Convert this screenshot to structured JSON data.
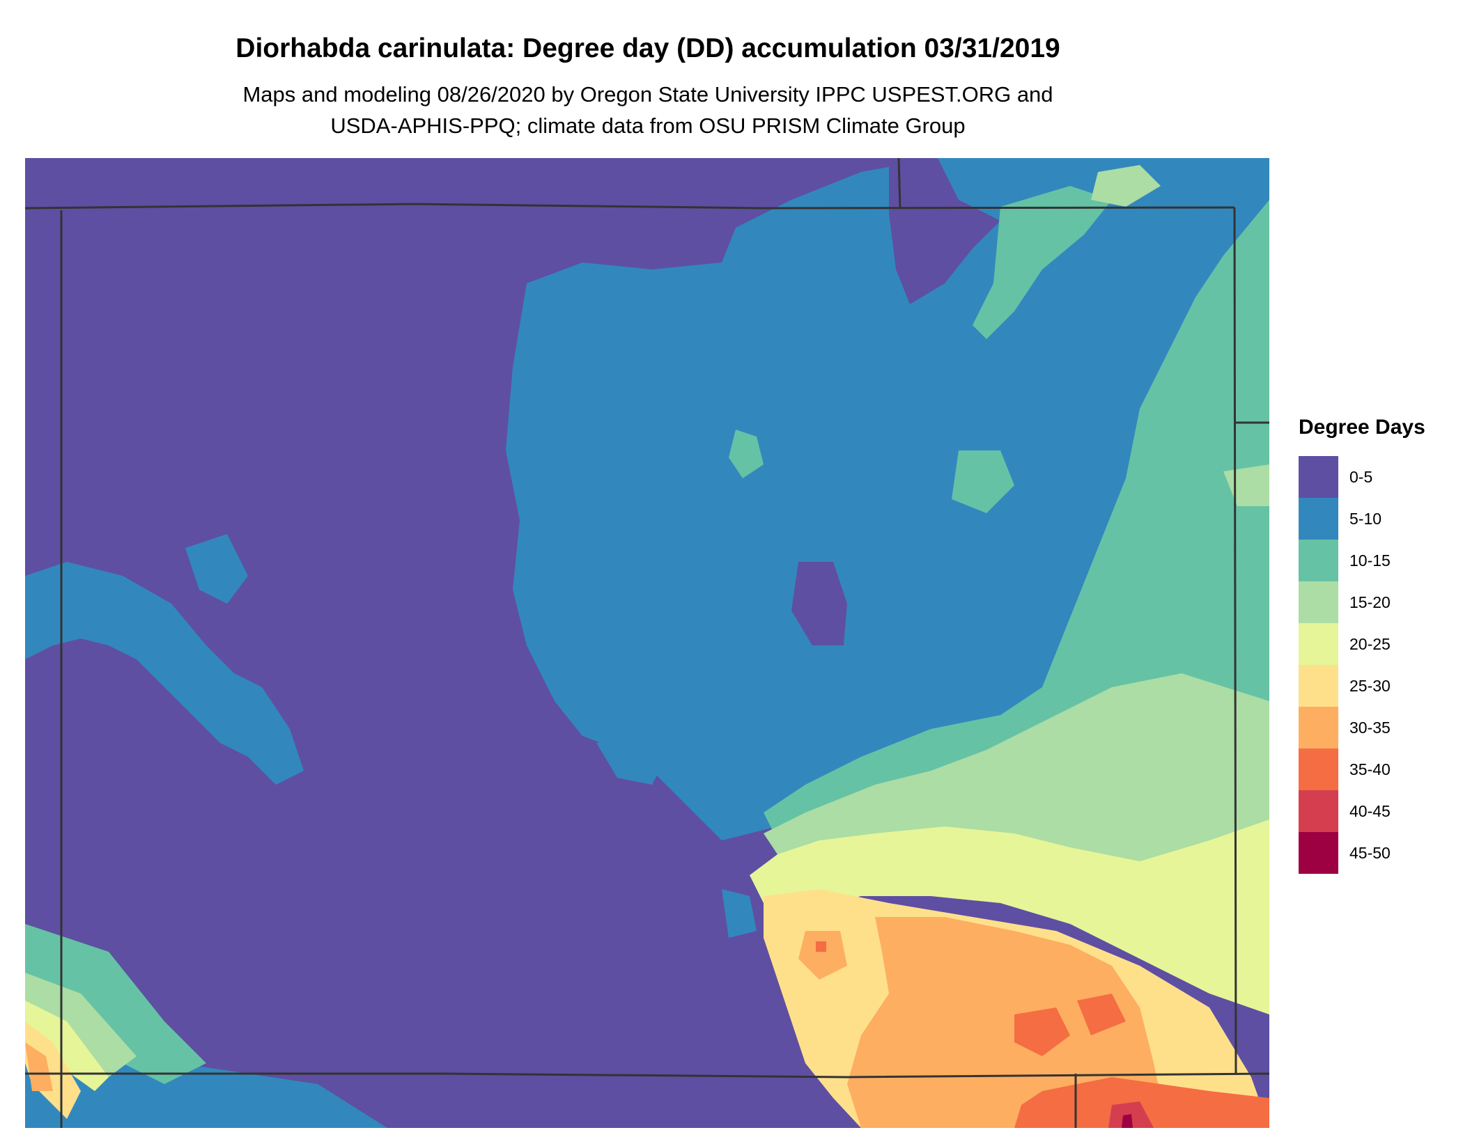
{
  "title": "Diorhabda carinulata: Degree day (DD) accumulation 03/31/2019",
  "subtitle_line1": "Maps and modeling 08/26/2020 by Oregon State University IPPC USPEST.ORG and",
  "subtitle_line2": "USDA-APHIS-PPQ; climate data from OSU PRISM Climate Group",
  "legend": {
    "title": "Degree Days",
    "items": [
      {
        "label": "0-5",
        "color": "#5e4fa2"
      },
      {
        "label": "5-10",
        "color": "#3288bd"
      },
      {
        "label": "10-15",
        "color": "#66c2a5"
      },
      {
        "label": "15-20",
        "color": "#abdda4"
      },
      {
        "label": "20-25",
        "color": "#e6f598"
      },
      {
        "label": "25-30",
        "color": "#fee08b"
      },
      {
        "label": "30-35",
        "color": "#fdae61"
      },
      {
        "label": "35-40",
        "color": "#f46d43"
      },
      {
        "label": "40-45",
        "color": "#d53e4f"
      },
      {
        "label": "45-50",
        "color": "#9e0142"
      }
    ]
  },
  "map": {
    "region_color": "#5e4fa2",
    "border_color": "#333333"
  }
}
